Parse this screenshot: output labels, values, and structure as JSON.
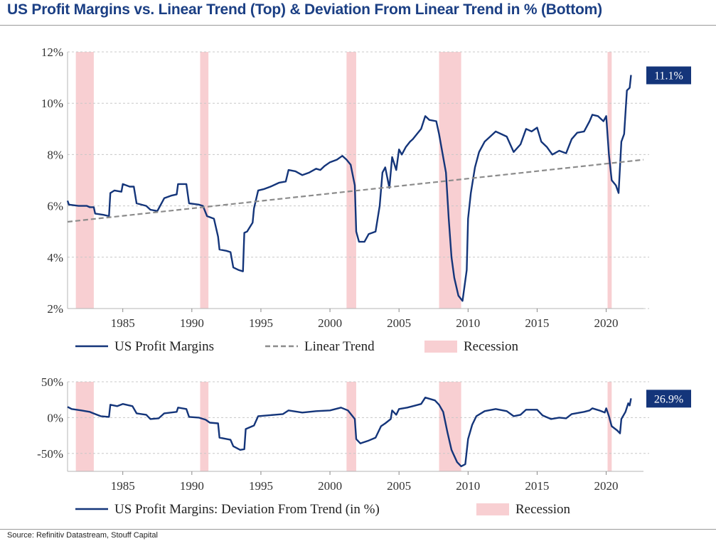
{
  "title": "US Profit Margins vs. Linear Trend (Top) & Deviation From Linear Trend in % (Bottom)",
  "source": "Source: Refinitiv Datastream, Stouff Capital",
  "colors": {
    "series": "#14357a",
    "trend": "#8c8c8c",
    "recession": "#f8cfd2",
    "grid": "#c8c8c8",
    "callout_bg": "#14357a",
    "callout_text": "#ffffff"
  },
  "chart_data": [
    {
      "type": "line",
      "xlim": [
        1981,
        2022.7
      ],
      "ylim": [
        2,
        12
      ],
      "yticks": [
        2,
        4,
        6,
        8,
        10,
        12
      ],
      "ytick_labels": [
        "2%",
        "4%",
        "6%",
        "8%",
        "10%",
        "12%"
      ],
      "xticks": [
        1985,
        1990,
        1995,
        2000,
        2005,
        2010,
        2015,
        2020
      ],
      "xtick_labels": [
        "1985",
        "1990",
        "1995",
        "2000",
        "2005",
        "2010",
        "2015",
        "2020"
      ],
      "grid": "horizontal dashed",
      "legend_placement": "bottom",
      "legend": [
        "US Profit Margins",
        "Linear Trend",
        "Recession"
      ],
      "recessions": [
        [
          1981.6,
          1982.9
        ],
        [
          1990.6,
          1991.2
        ],
        [
          2001.2,
          2001.9
        ],
        [
          2007.9,
          2009.5
        ],
        [
          2020.1,
          2020.4
        ]
      ],
      "callout": "11.1%",
      "series": [
        {
          "name": "US Profit Margins",
          "points": [
            [
              1981.0,
              6.2
            ],
            [
              1981.1,
              6.05
            ],
            [
              1981.8,
              6.0
            ],
            [
              1982.4,
              6.0
            ],
            [
              1982.6,
              5.95
            ],
            [
              1982.9,
              5.95
            ],
            [
              1983.0,
              5.7
            ],
            [
              1983.6,
              5.65
            ],
            [
              1984.0,
              5.6
            ],
            [
              1984.1,
              6.5
            ],
            [
              1984.4,
              6.6
            ],
            [
              1984.9,
              6.55
            ],
            [
              1985.0,
              6.85
            ],
            [
              1985.5,
              6.75
            ],
            [
              1985.8,
              6.75
            ],
            [
              1986.0,
              6.1
            ],
            [
              1986.7,
              6.0
            ],
            [
              1987.0,
              5.85
            ],
            [
              1987.5,
              5.8
            ],
            [
              1988.0,
              6.3
            ],
            [
              1988.5,
              6.4
            ],
            [
              1988.9,
              6.45
            ],
            [
              1989.0,
              6.85
            ],
            [
              1989.6,
              6.85
            ],
            [
              1989.8,
              6.1
            ],
            [
              1990.5,
              6.05
            ],
            [
              1990.8,
              6.0
            ],
            [
              1991.1,
              5.6
            ],
            [
              1991.6,
              5.5
            ],
            [
              1991.9,
              4.8
            ],
            [
              1992.0,
              4.3
            ],
            [
              1992.5,
              4.25
            ],
            [
              1992.8,
              4.2
            ],
            [
              1993.0,
              3.6
            ],
            [
              1993.4,
              3.5
            ],
            [
              1993.7,
              3.45
            ],
            [
              1993.8,
              4.95
            ],
            [
              1994.0,
              5.0
            ],
            [
              1994.4,
              5.35
            ],
            [
              1994.5,
              5.9
            ],
            [
              1994.8,
              6.6
            ],
            [
              1995.2,
              6.65
            ],
            [
              1995.7,
              6.75
            ],
            [
              1996.3,
              6.9
            ],
            [
              1996.8,
              6.95
            ],
            [
              1997.0,
              7.4
            ],
            [
              1997.5,
              7.35
            ],
            [
              1998.0,
              7.2
            ],
            [
              1998.5,
              7.3
            ],
            [
              1999.0,
              7.45
            ],
            [
              1999.3,
              7.4
            ],
            [
              1999.6,
              7.55
            ],
            [
              2000.0,
              7.7
            ],
            [
              2000.5,
              7.8
            ],
            [
              2000.9,
              7.95
            ],
            [
              2001.2,
              7.8
            ],
            [
              2001.5,
              7.6
            ],
            [
              2001.8,
              6.8
            ],
            [
              2001.9,
              5.0
            ],
            [
              2002.1,
              4.6
            ],
            [
              2002.5,
              4.6
            ],
            [
              2002.8,
              4.9
            ],
            [
              2003.3,
              5.0
            ],
            [
              2003.6,
              6.0
            ],
            [
              2003.8,
              7.3
            ],
            [
              2004.0,
              7.5
            ],
            [
              2004.3,
              6.7
            ],
            [
              2004.5,
              7.9
            ],
            [
              2004.8,
              7.4
            ],
            [
              2005.0,
              8.2
            ],
            [
              2005.2,
              8.0
            ],
            [
              2005.5,
              8.3
            ],
            [
              2005.8,
              8.5
            ],
            [
              2006.0,
              8.6
            ],
            [
              2006.3,
              8.8
            ],
            [
              2006.6,
              9.0
            ],
            [
              2006.9,
              9.5
            ],
            [
              2007.2,
              9.35
            ],
            [
              2007.7,
              9.3
            ],
            [
              2007.9,
              8.8
            ],
            [
              2008.2,
              7.9
            ],
            [
              2008.4,
              7.3
            ],
            [
              2008.6,
              5.5
            ],
            [
              2008.8,
              4.0
            ],
            [
              2009.0,
              3.2
            ],
            [
              2009.3,
              2.5
            ],
            [
              2009.6,
              2.3
            ],
            [
              2009.9,
              3.5
            ],
            [
              2010.0,
              5.5
            ],
            [
              2010.2,
              6.5
            ],
            [
              2010.5,
              7.5
            ],
            [
              2010.8,
              8.1
            ],
            [
              2011.2,
              8.5
            ],
            [
              2011.6,
              8.7
            ],
            [
              2012.0,
              8.9
            ],
            [
              2012.4,
              8.8
            ],
            [
              2012.8,
              8.7
            ],
            [
              2013.3,
              8.1
            ],
            [
              2013.8,
              8.4
            ],
            [
              2014.2,
              9.0
            ],
            [
              2014.6,
              8.9
            ],
            [
              2015.0,
              9.05
            ],
            [
              2015.3,
              8.5
            ],
            [
              2015.7,
              8.3
            ],
            [
              2016.1,
              8.0
            ],
            [
              2016.6,
              8.15
            ],
            [
              2017.1,
              8.05
            ],
            [
              2017.5,
              8.6
            ],
            [
              2017.9,
              8.85
            ],
            [
              2018.4,
              8.9
            ],
            [
              2018.8,
              9.3
            ],
            [
              2019.0,
              9.55
            ],
            [
              2019.4,
              9.5
            ],
            [
              2019.8,
              9.3
            ],
            [
              2020.0,
              9.5
            ],
            [
              2020.2,
              8.0
            ],
            [
              2020.4,
              7.0
            ],
            [
              2020.7,
              6.8
            ],
            [
              2020.9,
              6.5
            ],
            [
              2021.1,
              8.5
            ],
            [
              2021.3,
              8.8
            ],
            [
              2021.5,
              10.5
            ],
            [
              2021.7,
              10.6
            ],
            [
              2021.8,
              11.1
            ]
          ]
        },
        {
          "name": "Linear Trend",
          "points": [
            [
              1981.0,
              5.38
            ],
            [
              2022.7,
              7.8
            ]
          ]
        }
      ]
    },
    {
      "type": "line",
      "xlim": [
        1981,
        2022.7
      ],
      "ylim": [
        -75,
        50
      ],
      "yticks": [
        -50,
        0,
        50
      ],
      "ytick_labels": [
        "-50%",
        "0%",
        "50%"
      ],
      "xticks": [
        1985,
        1990,
        1995,
        2000,
        2005,
        2010,
        2015,
        2020
      ],
      "xtick_labels": [
        "1985",
        "1990",
        "1995",
        "2000",
        "2005",
        "2010",
        "2015",
        "2020"
      ],
      "grid": "horizontal dashed",
      "legend_placement": "bottom",
      "legend": [
        "US Profit Margins: Deviation From Trend (in %)",
        "Recession"
      ],
      "recessions": [
        [
          1981.6,
          1982.9
        ],
        [
          1990.6,
          1991.2
        ],
        [
          2001.2,
          2001.9
        ],
        [
          2007.9,
          2009.5
        ],
        [
          2020.1,
          2020.4
        ]
      ],
      "callout": "26.9%",
      "series": [
        {
          "name": "US Profit Margins: Deviation From Trend (in %)",
          "points": [
            [
              1981.0,
              15
            ],
            [
              1981.3,
              12
            ],
            [
              1982.0,
              10
            ],
            [
              1982.6,
              8
            ],
            [
              1983.0,
              5
            ],
            [
              1983.4,
              2
            ],
            [
              1984.0,
              1
            ],
            [
              1984.1,
              18
            ],
            [
              1984.6,
              16
            ],
            [
              1985.0,
              19
            ],
            [
              1985.7,
              16
            ],
            [
              1986.0,
              6
            ],
            [
              1986.7,
              4
            ],
            [
              1987.0,
              -2
            ],
            [
              1987.6,
              -1
            ],
            [
              1988.0,
              6
            ],
            [
              1988.9,
              8
            ],
            [
              1989.0,
              14
            ],
            [
              1989.6,
              12
            ],
            [
              1989.8,
              1
            ],
            [
              1990.5,
              0
            ],
            [
              1991.0,
              -3
            ],
            [
              1991.3,
              -7
            ],
            [
              1991.9,
              -8
            ],
            [
              1992.0,
              -28
            ],
            [
              1992.8,
              -31
            ],
            [
              1993.0,
              -40
            ],
            [
              1993.5,
              -45
            ],
            [
              1993.8,
              -44
            ],
            [
              1993.9,
              -16
            ],
            [
              1994.5,
              -11
            ],
            [
              1994.8,
              2
            ],
            [
              1996.0,
              4
            ],
            [
              1996.6,
              5
            ],
            [
              1997.0,
              10
            ],
            [
              1998.0,
              7
            ],
            [
              1999.0,
              9
            ],
            [
              2000.0,
              10
            ],
            [
              2000.8,
              14
            ],
            [
              2001.3,
              10
            ],
            [
              2001.8,
              -2
            ],
            [
              2001.9,
              -30
            ],
            [
              2002.2,
              -36
            ],
            [
              2002.8,
              -32
            ],
            [
              2003.3,
              -28
            ],
            [
              2003.7,
              -12
            ],
            [
              2004.0,
              -8
            ],
            [
              2004.4,
              -2
            ],
            [
              2004.5,
              10
            ],
            [
              2004.8,
              4
            ],
            [
              2005.0,
              12
            ],
            [
              2005.6,
              14
            ],
            [
              2006.0,
              16
            ],
            [
              2006.6,
              19
            ],
            [
              2006.9,
              28
            ],
            [
              2007.6,
              24
            ],
            [
              2007.9,
              18
            ],
            [
              2008.2,
              8
            ],
            [
              2008.5,
              -20
            ],
            [
              2008.8,
              -45
            ],
            [
              2009.2,
              -62
            ],
            [
              2009.5,
              -68
            ],
            [
              2009.8,
              -65
            ],
            [
              2010.0,
              -30
            ],
            [
              2010.3,
              -10
            ],
            [
              2010.6,
              2
            ],
            [
              2011.2,
              9
            ],
            [
              2012.0,
              12
            ],
            [
              2012.8,
              9
            ],
            [
              2013.3,
              2
            ],
            [
              2013.8,
              4
            ],
            [
              2014.2,
              11
            ],
            [
              2015.0,
              11
            ],
            [
              2015.4,
              3
            ],
            [
              2016.0,
              -2
            ],
            [
              2016.6,
              0
            ],
            [
              2017.1,
              -1
            ],
            [
              2017.5,
              5
            ],
            [
              2018.4,
              8
            ],
            [
              2018.8,
              10
            ],
            [
              2019.0,
              13
            ],
            [
              2019.5,
              10
            ],
            [
              2019.9,
              7
            ],
            [
              2020.0,
              13
            ],
            [
              2020.2,
              2
            ],
            [
              2020.4,
              -12
            ],
            [
              2020.8,
              -18
            ],
            [
              2021.0,
              -22
            ],
            [
              2021.1,
              -2
            ],
            [
              2021.4,
              8
            ],
            [
              2021.6,
              20
            ],
            [
              2021.7,
              17
            ],
            [
              2021.8,
              26.9
            ]
          ]
        }
      ]
    }
  ]
}
